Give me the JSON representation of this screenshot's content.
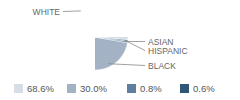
{
  "chart_data": {
    "type": "pie",
    "categories": [
      "WHITE",
      "BLACK",
      "ASIAN",
      "HISPANIC"
    ],
    "values": [
      68.6,
      30.0,
      0.8,
      0.6
    ],
    "value_labels": [
      "68.6%",
      "30.0%",
      "0.8%",
      "0.6%"
    ],
    "colors": [
      "#d6dde6",
      "#a3b3c5",
      "#5f7f9f",
      "#2f5677"
    ],
    "legend": "bottom"
  }
}
